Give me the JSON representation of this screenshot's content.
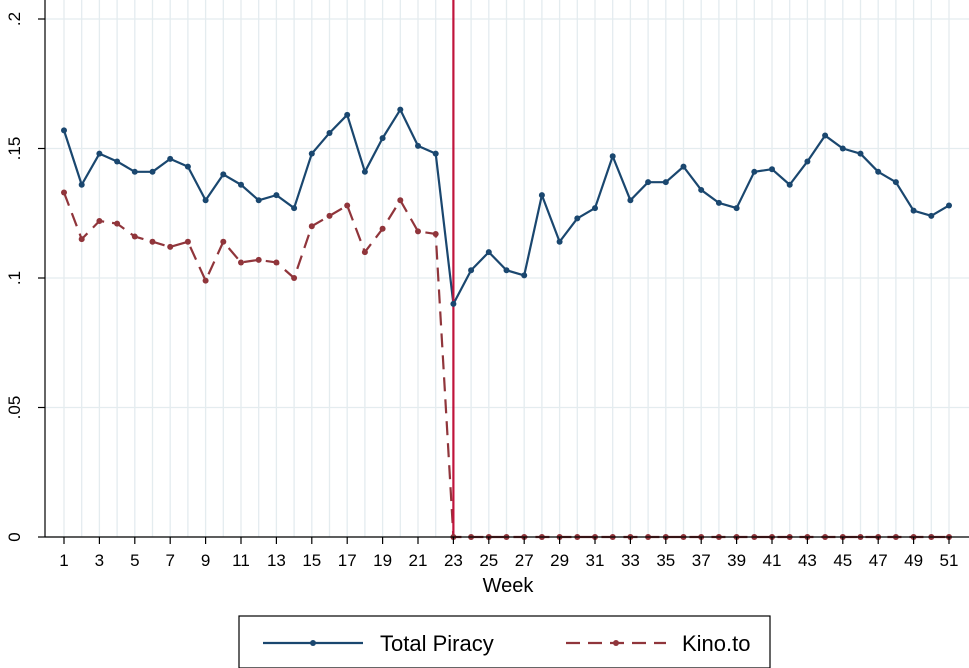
{
  "chart_data": {
    "type": "line",
    "xlabel": "Week",
    "ylabel": "",
    "xlim": [
      1,
      51
    ],
    "ylim": [
      0,
      0.2
    ],
    "x": [
      1,
      2,
      3,
      4,
      5,
      6,
      7,
      8,
      9,
      10,
      11,
      12,
      13,
      14,
      15,
      16,
      17,
      18,
      19,
      20,
      21,
      22,
      23,
      24,
      25,
      26,
      27,
      28,
      29,
      30,
      31,
      32,
      33,
      34,
      35,
      36,
      37,
      38,
      39,
      40,
      41,
      42,
      43,
      44,
      45,
      46,
      47,
      48,
      49,
      50,
      51
    ],
    "x_ticks": [
      1,
      3,
      5,
      7,
      9,
      11,
      13,
      15,
      17,
      19,
      21,
      23,
      25,
      27,
      29,
      31,
      33,
      35,
      37,
      39,
      41,
      43,
      45,
      47,
      49,
      51
    ],
    "x_tick_labels": [
      "1",
      "3",
      "5",
      "7",
      "9",
      "11",
      "13",
      "15",
      "17",
      "19",
      "21",
      "23",
      "25",
      "27",
      "29",
      "31",
      "33",
      "35",
      "37",
      "39",
      "41",
      "43",
      "45",
      "47",
      "49",
      "51"
    ],
    "y_ticks": [
      0,
      0.05,
      0.1,
      0.15,
      0.2
    ],
    "y_tick_labels": [
      "0",
      ".05",
      ".1",
      ".15",
      ".2"
    ],
    "grid": true,
    "vertical_line": {
      "x": 23,
      "color": "#c0143c"
    },
    "legend_position": "bottom",
    "series": [
      {
        "name": "Total Piracy",
        "color": "#1a476f",
        "dash": "solid",
        "values": [
          0.157,
          0.136,
          0.148,
          0.145,
          0.141,
          0.141,
          0.146,
          0.143,
          0.13,
          0.14,
          0.136,
          0.13,
          0.132,
          0.127,
          0.148,
          0.156,
          0.163,
          0.141,
          0.154,
          0.165,
          0.151,
          0.148,
          0.09,
          0.103,
          0.11,
          0.103,
          0.101,
          0.132,
          0.114,
          0.123,
          0.127,
          0.147,
          0.13,
          0.137,
          0.137,
          0.143,
          0.134,
          0.129,
          0.127,
          0.141,
          0.142,
          0.136,
          0.145,
          0.155,
          0.15,
          0.148,
          0.141,
          0.137,
          0.126,
          0.124,
          0.128
        ]
      },
      {
        "name": "Kino.to",
        "color": "#90353b",
        "dash": "dashed",
        "values": [
          0.133,
          0.115,
          0.122,
          0.121,
          0.116,
          0.114,
          0.112,
          0.114,
          0.099,
          0.114,
          0.106,
          0.107,
          0.106,
          0.1,
          0.12,
          0.124,
          0.128,
          0.11,
          0.119,
          0.13,
          0.118,
          0.117,
          0,
          0,
          0,
          0,
          0,
          0,
          0,
          0,
          0,
          0,
          0,
          0,
          0,
          0,
          0,
          0,
          0,
          0,
          0,
          0,
          0,
          0,
          0,
          0,
          0,
          0,
          0,
          0,
          0
        ]
      }
    ]
  }
}
